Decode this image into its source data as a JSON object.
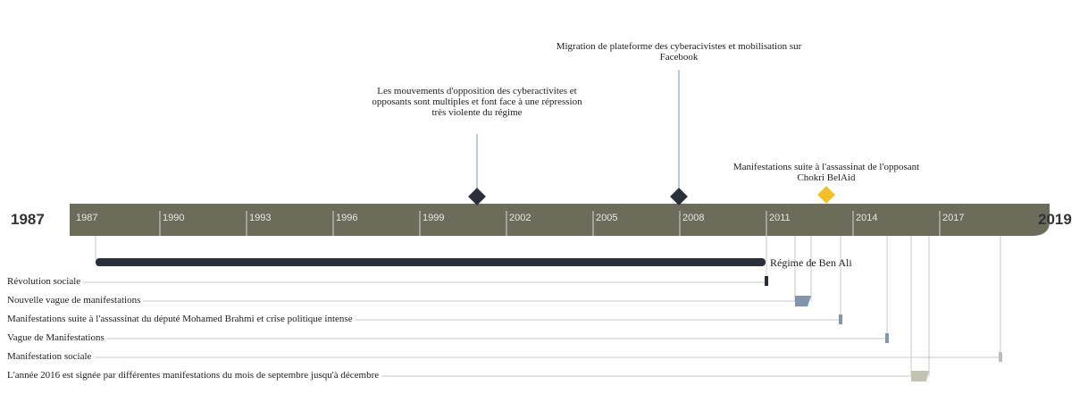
{
  "axis": {
    "start": "1987",
    "end": "2019",
    "ticks": [
      "1987",
      "1990",
      "1993",
      "1996",
      "1999",
      "2002",
      "2005",
      "2008",
      "2011",
      "2014",
      "2017"
    ]
  },
  "events": [
    {
      "label": "Les mouvements d'opposition des cyberactivites et opposants sont multiples et font face à une répression très violente du régime"
    },
    {
      "label": "Migration de plateforme des cyberacivistes et mobilisation sur Facebook"
    },
    {
      "label": "Manifestations suite à l'assassinat de l'opposant Chokri BelAid"
    }
  ],
  "periods": [
    {
      "label": "Régime de Ben Ali"
    }
  ],
  "rows": [
    {
      "label": "Révolution sociale"
    },
    {
      "label": "Nouvelle vague de manifestations"
    },
    {
      "label": "Manifestations suite à l'assassinat du député Mohamed Brahmi et crise politique intense"
    },
    {
      "label": "Vague de Manifestations"
    },
    {
      "label": "Manifestation sociale"
    },
    {
      "label": "L'année 2016 est signée par différentes manifestations du mois de septembre jusqu'à décembre"
    }
  ]
}
